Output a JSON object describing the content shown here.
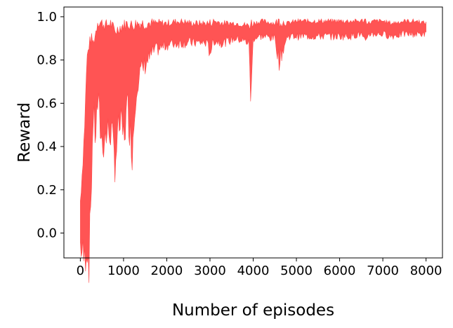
{
  "chart_data": {
    "type": "area",
    "title": "",
    "xlabel": "Number of episodes",
    "ylabel": "Reward",
    "xlim": [
      -380,
      8380
    ],
    "ylim": [
      -0.115,
      1.045
    ],
    "xticks": [
      0,
      1000,
      2000,
      3000,
      4000,
      5000,
      6000,
      7000,
      8000
    ],
    "yticks": [
      0.0,
      0.2,
      0.4,
      0.6,
      0.8,
      1.0
    ],
    "xtick_labels": [
      "0",
      "1000",
      "2000",
      "3000",
      "4000",
      "5000",
      "6000",
      "7000",
      "8000"
    ],
    "ytick_labels": [
      "0.0",
      "0.2",
      "0.4",
      "0.6",
      "0.8",
      "1.0"
    ],
    "grid": false,
    "legend": "none",
    "color": "#ff4b4b",
    "series": [
      {
        "x": [
          0,
          50,
          100,
          150,
          200,
          250,
          300,
          350,
          400,
          500,
          600,
          700,
          800,
          900,
          1000,
          1100,
          1200,
          1300,
          1500,
          1700,
          2000,
          2300,
          2600,
          2900,
          3000,
          3100,
          3300,
          3600,
          3900,
          3950,
          4000,
          4200,
          4500,
          4600,
          4800,
          5000,
          5300,
          5600,
          5900,
          6200,
          6500,
          6600,
          6650,
          6800,
          7000,
          7200,
          7500,
          7800,
          8000
        ],
        "lower": [
          -0.05,
          -0.1,
          -0.12,
          -0.05,
          -0.14,
          0.2,
          0.55,
          0.45,
          0.6,
          0.42,
          0.45,
          0.48,
          0.33,
          0.5,
          0.45,
          0.58,
          0.38,
          0.7,
          0.78,
          0.84,
          0.87,
          0.88,
          0.88,
          0.88,
          0.84,
          0.89,
          0.88,
          0.9,
          0.88,
          0.6,
          0.9,
          0.91,
          0.9,
          0.8,
          0.91,
          0.91,
          0.91,
          0.91,
          0.91,
          0.91,
          0.92,
          0.86,
          0.92,
          0.92,
          0.92,
          0.91,
          0.92,
          0.92,
          0.92
        ],
        "upper": [
          0.15,
          0.3,
          0.5,
          0.8,
          0.87,
          0.9,
          0.88,
          0.92,
          0.98,
          0.97,
          0.96,
          0.97,
          0.93,
          0.95,
          0.96,
          0.97,
          0.96,
          0.97,
          0.97,
          0.97,
          0.97,
          0.98,
          0.97,
          0.97,
          0.97,
          0.98,
          0.97,
          0.97,
          0.96,
          0.97,
          0.97,
          0.98,
          0.97,
          0.98,
          0.97,
          0.98,
          0.98,
          0.98,
          0.98,
          0.98,
          0.98,
          0.99,
          0.97,
          0.98,
          0.98,
          0.97,
          0.98,
          0.98,
          0.97
        ]
      }
    ]
  }
}
